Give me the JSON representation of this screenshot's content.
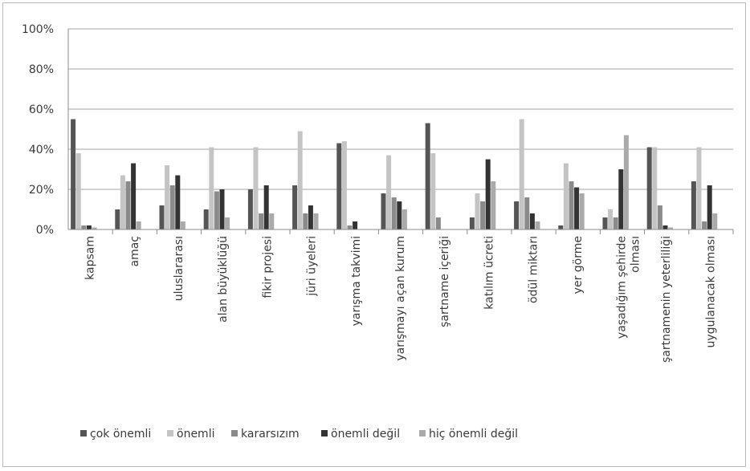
{
  "chart_data": {
    "type": "bar",
    "ylim": [
      0,
      100
    ],
    "y_ticks": [
      "0%",
      "20%",
      "40%",
      "60%",
      "80%",
      "100%"
    ],
    "grid": true,
    "legend_position": "bottom",
    "categories": [
      [
        "kapsam"
      ],
      [
        "amaç"
      ],
      [
        "uluslararası"
      ],
      [
        "alan büyüklüğü"
      ],
      [
        "fikir projesi"
      ],
      [
        "jüri üyeleri"
      ],
      [
        "yarışma takvimi"
      ],
      [
        "yarışmayı açan kurum"
      ],
      [
        "şartname içeriği"
      ],
      [
        "katılım ücreti"
      ],
      [
        "ödül miktarı"
      ],
      [
        "yer görme"
      ],
      [
        "yaşadığım şehirde",
        "olması"
      ],
      [
        "şartnamenin yeterliliği"
      ],
      [
        "uygulanacak olması"
      ]
    ],
    "series": [
      {
        "name": "çok önemli",
        "color": "#555555",
        "values": [
          55,
          10,
          12,
          10,
          20,
          22,
          43,
          18,
          53,
          6,
          14,
          2,
          6,
          41,
          24
        ]
      },
      {
        "name": "önemli",
        "color": "#c4c4c4",
        "values": [
          38,
          27,
          32,
          41,
          41,
          49,
          44,
          37,
          38,
          18,
          55,
          33,
          10,
          41,
          41
        ]
      },
      {
        "name": "kararsızım",
        "color": "#8a8a8a",
        "values": [
          2,
          24,
          22,
          19,
          8,
          8,
          2,
          16,
          6,
          14,
          16,
          24,
          6,
          12,
          4
        ]
      },
      {
        "name": "önemli değil",
        "color": "#333333",
        "values": [
          2,
          33,
          27,
          20,
          22,
          12,
          4,
          14,
          0,
          35,
          8,
          21,
          30,
          2,
          22
        ]
      },
      {
        "name": "hiç önemli değil",
        "color": "#aaaaaa",
        "values": [
          1,
          4,
          4,
          6,
          8,
          8,
          0,
          10,
          0,
          24,
          4,
          18,
          47,
          1,
          8
        ]
      }
    ]
  }
}
